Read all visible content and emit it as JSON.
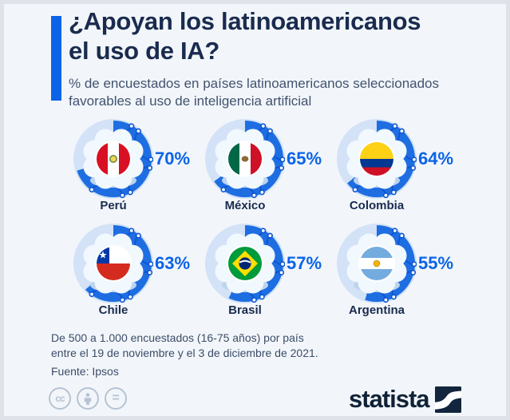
{
  "header": {
    "title_line1": "¿Apoyan los latinoamericanos",
    "title_line2": "el uso de IA?",
    "subtitle_line1": "% de encuestados en países latinoamericanos seleccionados",
    "subtitle_line2": "favorables al uso de inteligencia artificial"
  },
  "chart_data": {
    "type": "pie",
    "title": "¿Apoyan los latinoamericanos el uso de IA?",
    "subtitle": "% de encuestados en países latinoamericanos seleccionados favorables al uso de inteligencia artificial",
    "unit": "%",
    "categories": [
      "Perú",
      "México",
      "Colombia",
      "Chile",
      "Brasil",
      "Argentina"
    ],
    "values": [
      70,
      65,
      64,
      63,
      57,
      55
    ],
    "items": [
      {
        "label": "Perú",
        "value": 70,
        "value_label": "70%",
        "flag": "peru-flag-icon"
      },
      {
        "label": "México",
        "value": 65,
        "value_label": "65%",
        "flag": "mexico-flag-icon"
      },
      {
        "label": "Colombia",
        "value": 64,
        "value_label": "64%",
        "flag": "colombia-flag-icon"
      },
      {
        "label": "Chile",
        "value": 63,
        "value_label": "63%",
        "flag": "chile-flag-icon"
      },
      {
        "label": "Brasil",
        "value": 57,
        "value_label": "57%",
        "flag": "brasil-flag-icon"
      },
      {
        "label": "Argentina",
        "value": 55,
        "value_label": "55%",
        "flag": "argentina-flag-icon"
      }
    ]
  },
  "footer": {
    "note_line1": "De 500 a 1.000 encuestados (16-75 años) por país",
    "note_line2": "entre el 19 de noviembre y el 3 de diciembre de 2021.",
    "source": "Fuente: Ipsos"
  },
  "license": {
    "cc_label": "cc",
    "nd_label": "="
  },
  "branding": {
    "logo_text": "statista"
  },
  "colors": {
    "accent": "#0b63e8",
    "pie_fill": "#1e6ee2",
    "pie_rest": "#d3e2f7",
    "circuit_line": "#0d56d2",
    "navy_text": "#1a2b4f",
    "logo_navy": "#13253d",
    "background": "#f2f6fa",
    "frame": "#dfe3e9"
  }
}
